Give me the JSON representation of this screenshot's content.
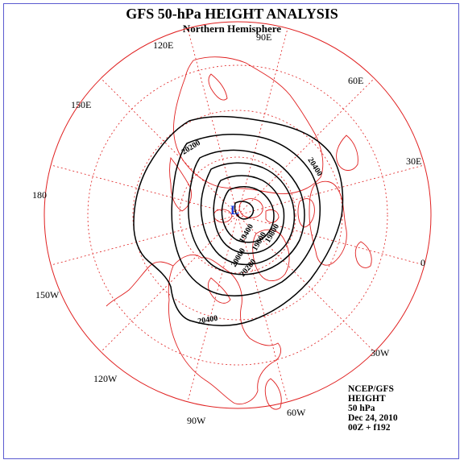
{
  "title": "GFS 50-hPa HEIGHT ANALYSIS",
  "subtitle": "Northern Hemisphere",
  "longitude_labels": [
    "90E",
    "60E",
    "30E",
    "0",
    "30W",
    "60W",
    "90W",
    "120W",
    "150W",
    "180",
    "150E",
    "120E"
  ],
  "contour_labels": [
    "20200",
    "20400",
    "19400",
    "19600",
    "19800",
    "20000",
    "20200",
    "20400"
  ],
  "low_marker": "L",
  "info_lines": [
    "NCEP/GFS",
    "HEIGHT",
    "50 hPa",
    "Dec 24, 2010",
    "00Z + f192"
  ],
  "colors": {
    "graticule": "#e02020",
    "coastline": "#e02020",
    "contour": "#000000",
    "low_marker": "#1a3ad8",
    "border": "#5a5ad0"
  }
}
